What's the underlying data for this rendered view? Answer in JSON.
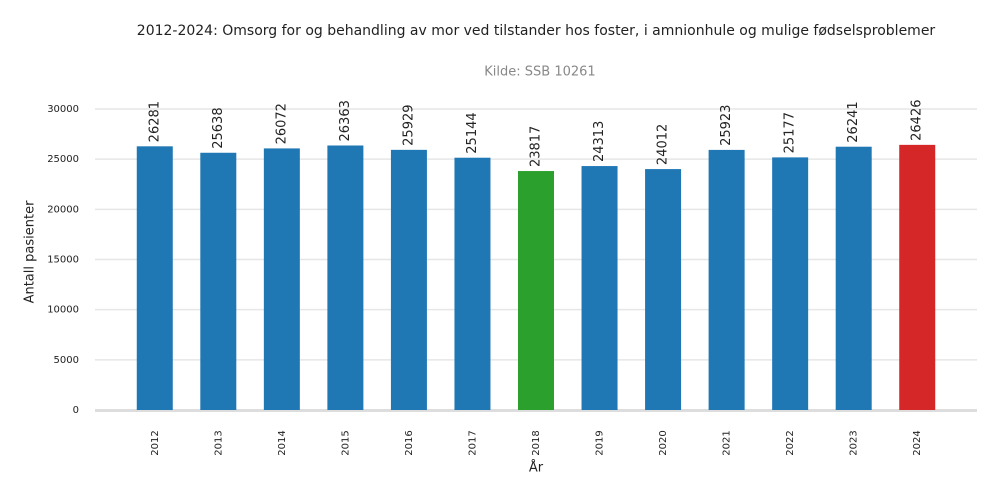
{
  "chart_data": {
    "type": "bar",
    "title": "2012-2024: Omsorg for og behandling av mor ved tilstander hos foster, i amnionhule og mulige fødselsproblemer",
    "subtitle": "Kilde: SSB 10261",
    "x_label": "År",
    "y_label": "Antall pasienter",
    "categories": [
      "2012",
      "2013",
      "2014",
      "2015",
      "2016",
      "2017",
      "2018",
      "2019",
      "2020",
      "2021",
      "2022",
      "2023",
      "2024"
    ],
    "values": [
      26281,
      25638,
      26072,
      26363,
      25929,
      25144,
      23817,
      24313,
      24012,
      25923,
      25177,
      26241,
      26426
    ],
    "colors": [
      "#1f77b4",
      "#1f77b4",
      "#1f77b4",
      "#1f77b4",
      "#1f77b4",
      "#1f77b4",
      "#2ca02c",
      "#1f77b4",
      "#1f77b4",
      "#1f77b4",
      "#1f77b4",
      "#1f77b4",
      "#d62728"
    ],
    "ylim": [
      0,
      30000
    ],
    "yticks": [
      0,
      5000,
      10000,
      15000,
      20000,
      25000,
      30000
    ],
    "grid": true
  }
}
